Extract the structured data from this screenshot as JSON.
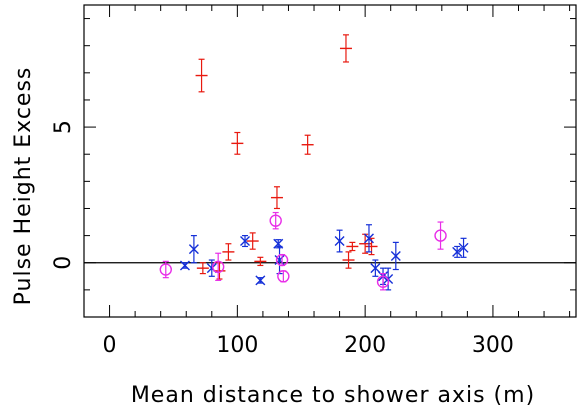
{
  "chart_data": {
    "type": "scatter",
    "title": "",
    "xlabel": "Mean distance to shower axis (m)",
    "ylabel": "Pulse Height Excess",
    "xlim": [
      -20,
      365
    ],
    "ylim": [
      -2,
      9.5
    ],
    "x_ticks": [
      0,
      100,
      200,
      300
    ],
    "x_tick_labels": [
      "0",
      "100",
      "200",
      "300"
    ],
    "y_ticks": [
      0,
      5
    ],
    "y_tick_labels": [
      "0",
      "5"
    ],
    "reference_line_y": 0,
    "grid": false,
    "series": [
      {
        "marker": "plus",
        "color": "#e8190f",
        "points": [
          {
            "x": 72,
            "y": 6.9,
            "yerr": 0.6
          },
          {
            "x": 73,
            "y": -0.2,
            "yerr": 0.2
          },
          {
            "x": 86,
            "y": -0.3,
            "yerr": 0.3
          },
          {
            "x": 93,
            "y": 0.4,
            "yerr": 0.3
          },
          {
            "x": 100,
            "y": 4.4,
            "yerr": 0.4
          },
          {
            "x": 112,
            "y": 0.8,
            "yerr": 0.3
          },
          {
            "x": 118,
            "y": 0.05,
            "yerr": 0.15
          },
          {
            "x": 131,
            "y": 2.4,
            "yerr": 0.4
          },
          {
            "x": 155,
            "y": 4.35,
            "yerr": 0.35
          },
          {
            "x": 185,
            "y": 7.9,
            "yerr": 0.5
          },
          {
            "x": 187,
            "y": 0.1,
            "yerr": 0.3
          },
          {
            "x": 190,
            "y": 0.6,
            "yerr": 0.15
          },
          {
            "x": 200,
            "y": 0.7,
            "yerr": 0.35
          },
          {
            "x": 205,
            "y": 0.6,
            "yerr": 0.3
          }
        ]
      },
      {
        "marker": "cross",
        "color": "#1530d8",
        "points": [
          {
            "x": 59,
            "y": -0.1,
            "yerr": 0.1
          },
          {
            "x": 66,
            "y": 0.5,
            "yerr": 0.5
          },
          {
            "x": 80,
            "y": -0.2,
            "yerr": 0.3
          },
          {
            "x": 106,
            "y": 0.8,
            "yerr": 0.2
          },
          {
            "x": 118,
            "y": -0.65,
            "yerr": 0.1
          },
          {
            "x": 132,
            "y": 0.7,
            "yerr": 0.15
          },
          {
            "x": 133,
            "y": 0.1,
            "yerr": 0.5
          },
          {
            "x": 180,
            "y": 0.8,
            "yerr": 0.4
          },
          {
            "x": 203,
            "y": 0.9,
            "yerr": 0.5
          },
          {
            "x": 208,
            "y": -0.2,
            "yerr": 0.3
          },
          {
            "x": 214,
            "y": -0.5,
            "yerr": 0.3
          },
          {
            "x": 218,
            "y": -0.6,
            "yerr": 0.4
          },
          {
            "x": 224,
            "y": 0.25,
            "yerr": 0.5
          },
          {
            "x": 272,
            "y": 0.4,
            "yerr": 0.2
          },
          {
            "x": 277,
            "y": 0.55,
            "yerr": 0.35
          }
        ]
      },
      {
        "marker": "circle",
        "color": "#e82ee8",
        "points": [
          {
            "x": 44,
            "y": -0.25,
            "yerr": 0.3
          },
          {
            "x": 85,
            "y": -0.15,
            "yerr": 0.5
          },
          {
            "x": 130,
            "y": 1.55,
            "yerr": 0.3
          },
          {
            "x": 135,
            "y": 0.1,
            "yerr": 0.2
          },
          {
            "x": 136,
            "y": -0.5,
            "yerr": 0.2
          },
          {
            "x": 214,
            "y": -0.7,
            "yerr": 0.3
          },
          {
            "x": 259,
            "y": 1.0,
            "yerr": 0.5
          }
        ]
      }
    ]
  }
}
